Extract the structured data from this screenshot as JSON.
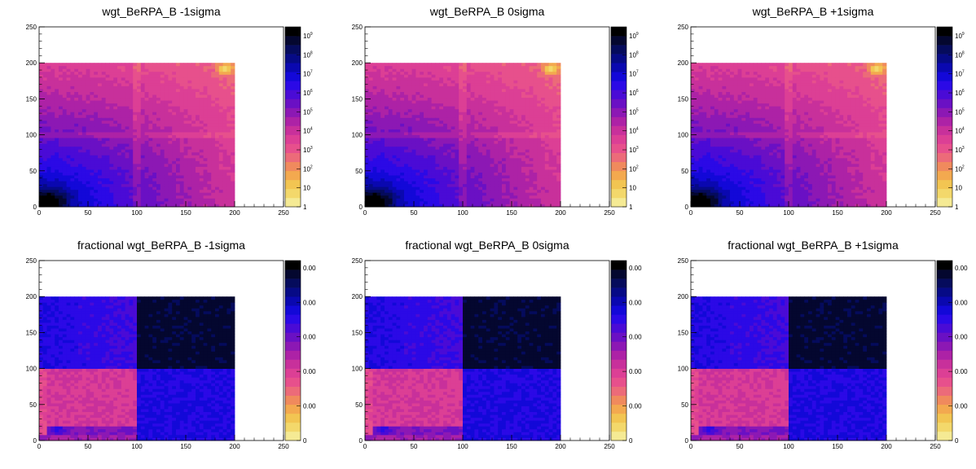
{
  "chart_data": [
    {
      "type": "heatmap",
      "title": "wgt_BeRPA_B -1sigma",
      "xlabel": "",
      "ylabel": "",
      "xlim": [
        0,
        250
      ],
      "ylim": [
        0,
        250
      ],
      "x_ticks": [
        "0",
        "50",
        "100",
        "150",
        "200",
        "250"
      ],
      "y_ticks": [
        "0",
        "50",
        "100",
        "150",
        "200",
        "250"
      ],
      "colorbar": {
        "scale": "log",
        "range": [
          1,
          1000000000
        ],
        "labels": [
          {
            "v": "1",
            "e": ""
          },
          {
            "v": "10",
            "e": ""
          },
          {
            "v": "10",
            "e": "2"
          },
          {
            "v": "10",
            "e": "3"
          },
          {
            "v": "10",
            "e": "4"
          },
          {
            "v": "10",
            "e": "5"
          },
          {
            "v": "10",
            "e": "6"
          },
          {
            "v": "10",
            "e": "7"
          },
          {
            "v": "10",
            "e": "8"
          },
          {
            "v": "10",
            "e": "9"
          }
        ]
      },
      "data_extent": {
        "x": [
          0,
          200
        ],
        "y": [
          0,
          200
        ]
      },
      "pattern": "count"
    },
    {
      "type": "heatmap",
      "title": "wgt_BeRPA_B 0sigma",
      "xlabel": "",
      "ylabel": "",
      "xlim": [
        0,
        250
      ],
      "ylim": [
        0,
        250
      ],
      "x_ticks": [
        "0",
        "50",
        "100",
        "150",
        "200",
        "250"
      ],
      "y_ticks": [
        "0",
        "50",
        "100",
        "150",
        "200",
        "250"
      ],
      "colorbar": {
        "scale": "log",
        "range": [
          1,
          1000000000
        ],
        "labels": [
          {
            "v": "1",
            "e": ""
          },
          {
            "v": "10",
            "e": ""
          },
          {
            "v": "10",
            "e": "2"
          },
          {
            "v": "10",
            "e": "3"
          },
          {
            "v": "10",
            "e": "4"
          },
          {
            "v": "10",
            "e": "5"
          },
          {
            "v": "10",
            "e": "6"
          },
          {
            "v": "10",
            "e": "7"
          },
          {
            "v": "10",
            "e": "8"
          },
          {
            "v": "10",
            "e": "9"
          }
        ]
      },
      "data_extent": {
        "x": [
          0,
          200
        ],
        "y": [
          0,
          200
        ]
      },
      "pattern": "count"
    },
    {
      "type": "heatmap",
      "title": "wgt_BeRPA_B +1sigma",
      "xlabel": "",
      "ylabel": "",
      "xlim": [
        0,
        250
      ],
      "ylim": [
        0,
        250
      ],
      "x_ticks": [
        "0",
        "50",
        "100",
        "150",
        "200",
        "250"
      ],
      "y_ticks": [
        "0",
        "50",
        "100",
        "150",
        "200",
        "250"
      ],
      "colorbar": {
        "scale": "log",
        "range": [
          1,
          1000000000
        ],
        "labels": [
          {
            "v": "1",
            "e": ""
          },
          {
            "v": "10",
            "e": ""
          },
          {
            "v": "10",
            "e": "2"
          },
          {
            "v": "10",
            "e": "3"
          },
          {
            "v": "10",
            "e": "4"
          },
          {
            "v": "10",
            "e": "5"
          },
          {
            "v": "10",
            "e": "6"
          },
          {
            "v": "10",
            "e": "7"
          },
          {
            "v": "10",
            "e": "8"
          },
          {
            "v": "10",
            "e": "9"
          }
        ]
      },
      "data_extent": {
        "x": [
          0,
          200
        ],
        "y": [
          0,
          200
        ]
      },
      "pattern": "count"
    },
    {
      "type": "heatmap",
      "title": "fractional wgt_BeRPA_B -1sigma",
      "xlabel": "",
      "ylabel": "",
      "xlim": [
        0,
        250
      ],
      "ylim": [
        0,
        250
      ],
      "x_ticks": [
        "0",
        "50",
        "100",
        "150",
        "200",
        "250"
      ],
      "y_ticks": [
        "0",
        "50",
        "100",
        "150",
        "200",
        "250"
      ],
      "colorbar": {
        "scale": "linear",
        "labels": [
          {
            "v": "0",
            "e": ""
          },
          {
            "v": "0.00",
            "e": ""
          },
          {
            "v": "0.00",
            "e": ""
          },
          {
            "v": "0.00",
            "e": ""
          },
          {
            "v": "0.00",
            "e": ""
          },
          {
            "v": "0.00",
            "e": ""
          }
        ]
      },
      "data_extent": {
        "x": [
          0,
          200
        ],
        "y": [
          0,
          200
        ]
      },
      "pattern": "fraction"
    },
    {
      "type": "heatmap",
      "title": "fractional wgt_BeRPA_B 0sigma",
      "xlabel": "",
      "ylabel": "",
      "xlim": [
        0,
        250
      ],
      "ylim": [
        0,
        250
      ],
      "x_ticks": [
        "0",
        "50",
        "100",
        "150",
        "200",
        "250"
      ],
      "y_ticks": [
        "0",
        "50",
        "100",
        "150",
        "200",
        "250"
      ],
      "colorbar": {
        "scale": "linear",
        "labels": [
          {
            "v": "0",
            "e": ""
          },
          {
            "v": "0.00",
            "e": ""
          },
          {
            "v": "0.00",
            "e": ""
          },
          {
            "v": "0.00",
            "e": ""
          },
          {
            "v": "0.00",
            "e": ""
          },
          {
            "v": "0.00",
            "e": ""
          }
        ]
      },
      "data_extent": {
        "x": [
          0,
          200
        ],
        "y": [
          0,
          200
        ]
      },
      "pattern": "fraction"
    },
    {
      "type": "heatmap",
      "title": "fractional wgt_BeRPA_B +1sigma",
      "xlabel": "",
      "ylabel": "",
      "xlim": [
        0,
        250
      ],
      "ylim": [
        0,
        250
      ],
      "x_ticks": [
        "0",
        "50",
        "100",
        "150",
        "200",
        "250"
      ],
      "y_ticks": [
        "0",
        "50",
        "100",
        "150",
        "200",
        "250"
      ],
      "colorbar": {
        "scale": "linear",
        "labels": [
          {
            "v": "0",
            "e": ""
          },
          {
            "v": "0.00",
            "e": ""
          },
          {
            "v": "0.00",
            "e": ""
          },
          {
            "v": "0.00",
            "e": ""
          },
          {
            "v": "0.00",
            "e": ""
          },
          {
            "v": "0.00",
            "e": ""
          }
        ]
      },
      "data_extent": {
        "x": [
          0,
          200
        ],
        "y": [
          0,
          200
        ]
      },
      "pattern": "fraction"
    }
  ],
  "palette": [
    "#f5ea94",
    "#f3d86b",
    "#f2c552",
    "#f3a94f",
    "#f08a5d",
    "#ec6b79",
    "#e7508c",
    "#dc3f95",
    "#c8309b",
    "#ad22a6",
    "#8c18b4",
    "#6a10c4",
    "#4a0bd6",
    "#2b09e6",
    "#1308d8",
    "#0a08b0",
    "#060a86",
    "#050b5c",
    "#04072f",
    "#000000"
  ]
}
